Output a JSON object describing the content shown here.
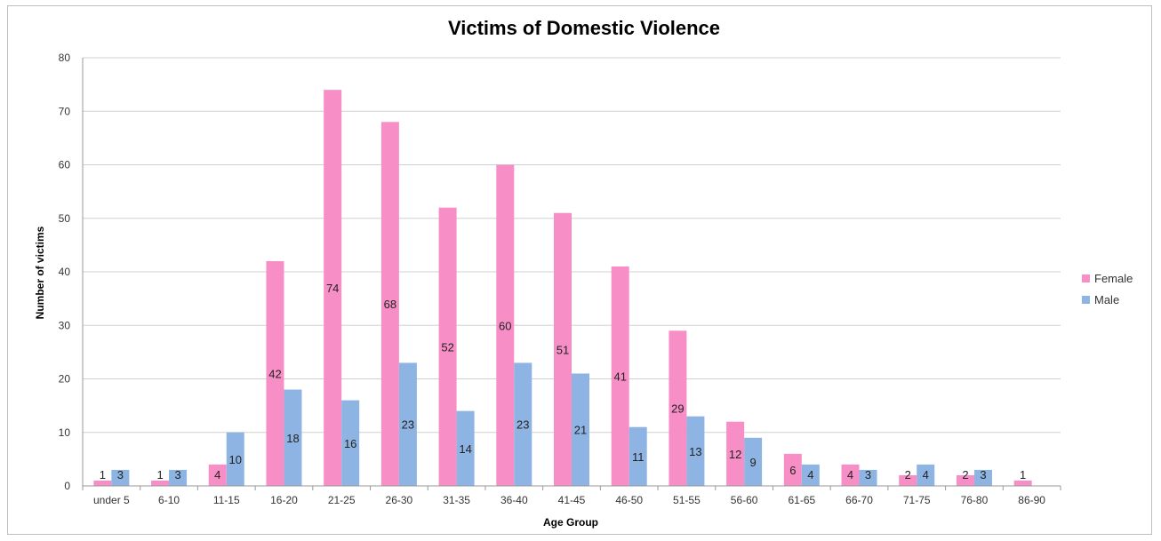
{
  "chart_data": {
    "type": "bar",
    "title": "Victims of Domestic Violence",
    "xlabel": "Age Group",
    "ylabel": "Number of victims",
    "ylim": [
      0,
      80
    ],
    "yticks": [
      0,
      10,
      20,
      30,
      40,
      50,
      60,
      70,
      80
    ],
    "grid": true,
    "legend_position": "right",
    "categories": [
      "under 5",
      "6-10",
      "11-15",
      "16-20",
      "21-25",
      "26-30",
      "31-35",
      "36-40",
      "41-45",
      "46-50",
      "51-55",
      "56-60",
      "61-65",
      "66-70",
      "71-75",
      "76-80",
      "86-90"
    ],
    "series": [
      {
        "name": "Female",
        "color": "#f78fc6",
        "values": [
          1,
          1,
          4,
          42,
          74,
          68,
          52,
          60,
          51,
          41,
          29,
          12,
          6,
          4,
          2,
          2,
          1
        ],
        "labels": [
          "1",
          "1",
          "4",
          "42",
          "74",
          "68",
          "52",
          "60",
          "51",
          "41",
          "29",
          "12",
          "6",
          "4",
          "2",
          "2",
          "1"
        ]
      },
      {
        "name": "Male",
        "color": "#8eb4e3",
        "values": [
          3,
          3,
          10,
          18,
          16,
          23,
          14,
          23,
          21,
          11,
          13,
          9,
          4,
          3,
          4,
          3,
          null
        ],
        "labels": [
          "3",
          "3",
          "10",
          "18",
          "16",
          "23",
          "14",
          "23",
          "21",
          "11",
          "13",
          "9",
          "4",
          "3",
          "4",
          "3",
          null
        ]
      }
    ]
  }
}
